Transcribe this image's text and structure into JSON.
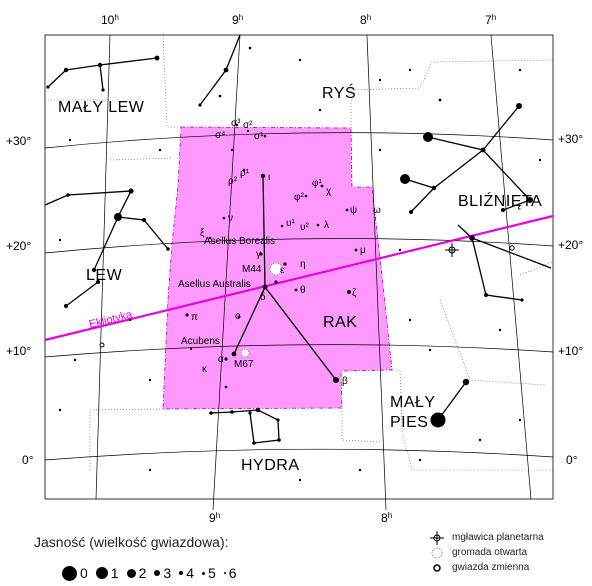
{
  "chart_data": {
    "type": "star-map",
    "ra_ticks_top": [
      {
        "label": "10",
        "sup": "h"
      },
      {
        "label": "9",
        "sup": "h"
      },
      {
        "label": "8",
        "sup": "h"
      },
      {
        "label": "7",
        "sup": "h"
      }
    ],
    "ra_ticks_bottom": [
      {
        "label": "9",
        "sup": "h"
      },
      {
        "label": "8",
        "sup": "h"
      }
    ],
    "dec_labels": [
      "+30°",
      "+20°",
      "+10°",
      "0°"
    ],
    "constellations": [
      "RYŚ",
      "MAŁY LEW",
      "BLIŹNIĘTA",
      "LEW",
      "RAK",
      "MAŁY",
      "PIES",
      "HYDRA"
    ],
    "ecliptic_label": "Ekliptyka",
    "greek_letters": [
      "σ³",
      "σ²",
      "σ⁴",
      "σ¹",
      "ι",
      "ρ²",
      "ρ¹",
      "φ²",
      "φ¹",
      "χ",
      "ψ",
      "ω",
      "υ¹",
      "υ²",
      "λ",
      "ξ",
      "ν",
      "γ",
      "μ",
      "η",
      "ε",
      "θ",
      "δ",
      "ζ",
      "π",
      "ο",
      "α",
      "κ",
      "β"
    ],
    "named_stars": [
      "Asellus Borealis",
      "Asellus Australis",
      "Acubens"
    ],
    "deep_sky": [
      "M44",
      "M67"
    ],
    "highlight_color": "#ff99ff",
    "ecliptic_color": "#e600e6"
  },
  "legend": {
    "title": "Jasność (wielkość gwiazdowa):",
    "magnitudes": [
      "0",
      "1",
      "2",
      "3",
      "4",
      "5",
      "6"
    ],
    "objects": [
      {
        "icon": "planetary-nebula-icon",
        "label": "mgławica planetarna"
      },
      {
        "icon": "open-cluster-icon",
        "label": "gromada otwarta"
      },
      {
        "icon": "variable-star-icon",
        "label": "gwiazda zmienna"
      }
    ]
  }
}
